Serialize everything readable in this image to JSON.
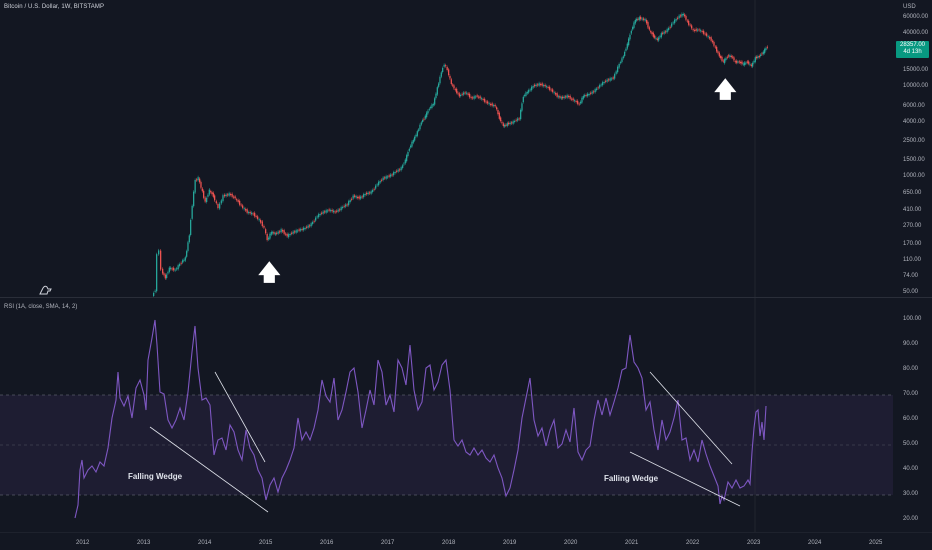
{
  "header": {
    "symbol_title": "Bitcoin / U.S. Dollar, 1W, BITSTAMP",
    "currency": "USD"
  },
  "price_axis": {
    "ticks": [
      "60000.00",
      "40000.00",
      "15000.00",
      "10000.00",
      "6000.00",
      "4000.00",
      "2500.00",
      "1500.00",
      "1000.00",
      "650.00",
      "410.00",
      "270.00",
      "170.00",
      "110.00",
      "74.00",
      "50.00"
    ],
    "last_price": "28357.00",
    "countdown": "4d 13h"
  },
  "rsi": {
    "title": "RSI (1A, close, SMA, 14, 2)",
    "ticks": [
      "100.00",
      "90.00",
      "80.00",
      "70.00",
      "60.00",
      "50.00",
      "40.00",
      "30.00",
      "20.00"
    ],
    "line_color": "#7e57c2",
    "band_color": "#7e57c2"
  },
  "time_axis": {
    "labels": [
      "2012",
      "2013",
      "2014",
      "2015",
      "2016",
      "2017",
      "2018",
      "2019",
      "2020",
      "2021",
      "2022",
      "2023",
      "2024",
      "2025"
    ]
  },
  "annotations": {
    "wedge_left": "Falling Wedge",
    "wedge_right": "Falling Wedge"
  },
  "colors": {
    "up": "#26a69a",
    "down": "#ef5350",
    "background": "#131722",
    "badge": "#089981"
  }
}
